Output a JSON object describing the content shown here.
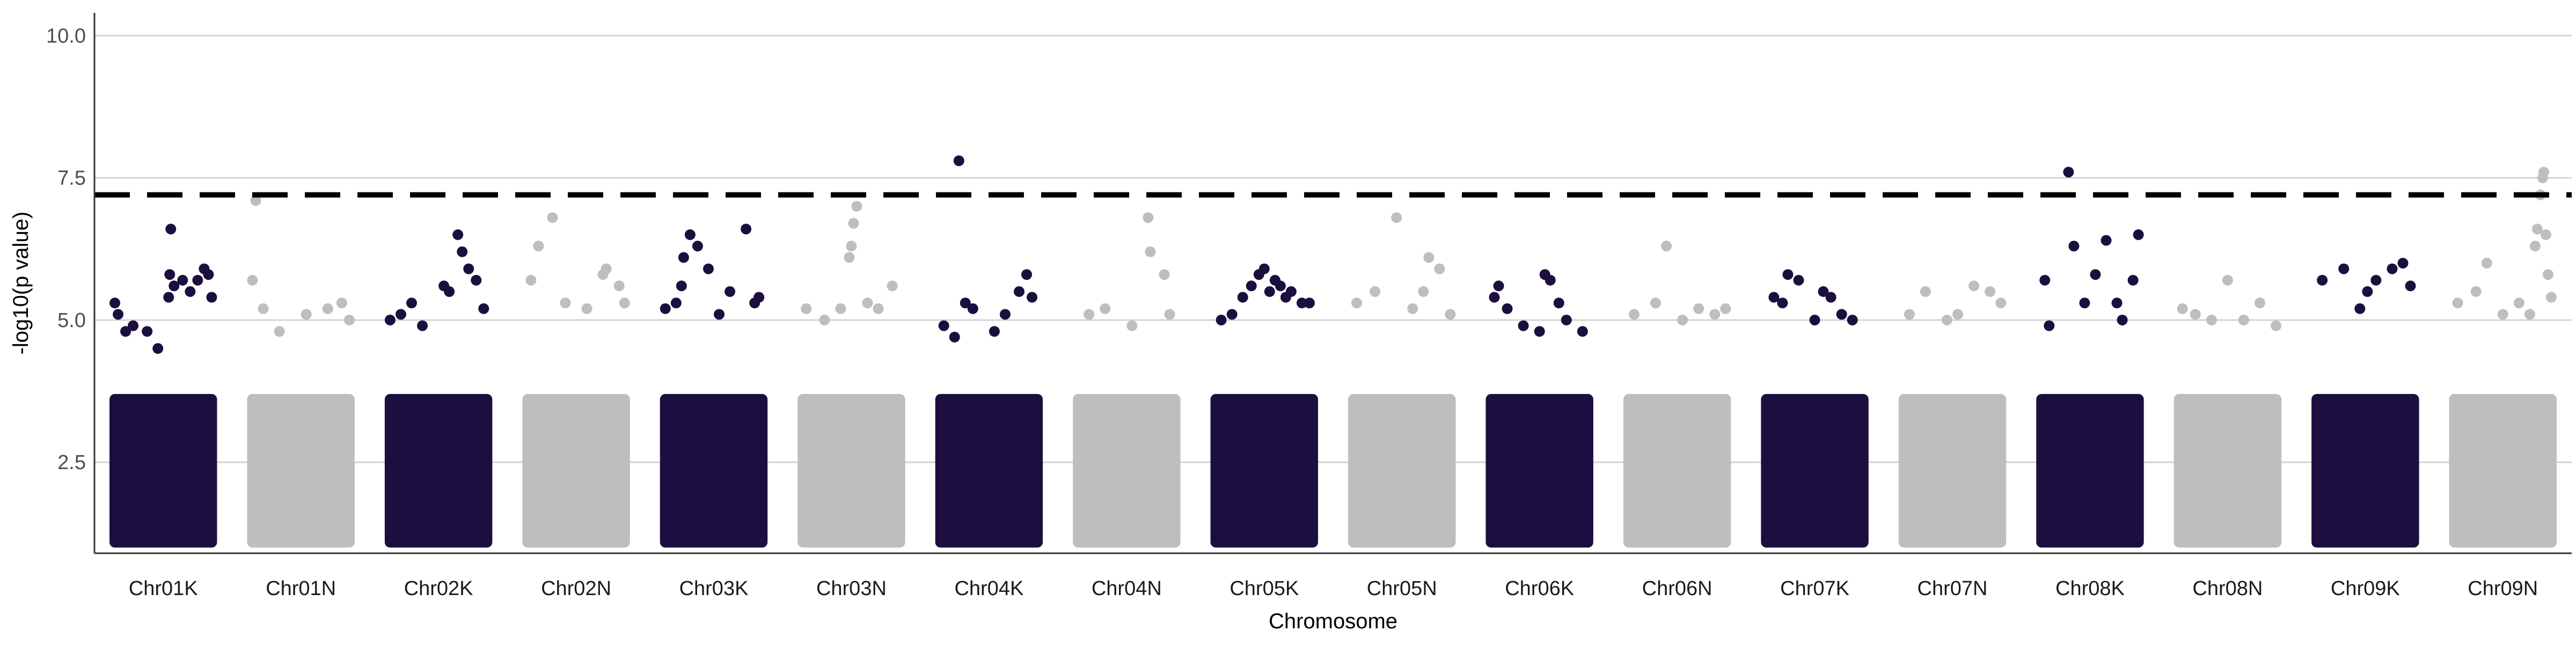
{
  "chart_data": {
    "type": "scatter",
    "title": "",
    "xlabel": "Chromosome",
    "ylabel": "-log10(p value)",
    "ylim": [
      0.9,
      10.4
    ],
    "yticks": [
      2.5,
      5.0,
      7.5,
      10.0
    ],
    "ytick_labels": [
      "2.5",
      "5.0",
      "7.5",
      "10.0"
    ],
    "grid": "horizontal major",
    "legend": "none",
    "significance_threshold": 7.2,
    "colors": {
      "dark": "#1c0f40",
      "light": "#bebebe",
      "threshold": "#000000",
      "grid": "#d3d3d3"
    },
    "categories": [
      "Chr01K",
      "Chr01N",
      "Chr02K",
      "Chr02N",
      "Chr03K",
      "Chr03N",
      "Chr04K",
      "Chr04N",
      "Chr05K",
      "Chr05N",
      "Chr06K",
      "Chr06N",
      "Chr07K",
      "Chr07N",
      "Chr08K",
      "Chr08N",
      "Chr09K",
      "Chr09N"
    ],
    "series": [
      {
        "chromosome": "Chr01K",
        "color": "dark",
        "points": [
          [
            0.05,
            5.3
          ],
          [
            0.08,
            5.1
          ],
          [
            0.15,
            4.8
          ],
          [
            0.22,
            4.9
          ],
          [
            0.35,
            4.8
          ],
          [
            0.45,
            4.5
          ],
          [
            0.55,
            5.4
          ],
          [
            0.56,
            5.8
          ],
          [
            0.57,
            6.6
          ],
          [
            0.6,
            5.6
          ],
          [
            0.68,
            5.7
          ],
          [
            0.75,
            5.5
          ],
          [
            0.82,
            5.7
          ],
          [
            0.88,
            5.9
          ],
          [
            0.92,
            5.8
          ],
          [
            0.95,
            5.4
          ]
        ]
      },
      {
        "chromosome": "Chr01N",
        "color": "light",
        "points": [
          [
            0.05,
            5.7
          ],
          [
            0.08,
            7.1
          ],
          [
            0.15,
            5.2
          ],
          [
            0.3,
            4.8
          ],
          [
            0.55,
            5.1
          ],
          [
            0.75,
            5.2
          ],
          [
            0.88,
            5.3
          ],
          [
            0.95,
            5.0
          ]
        ]
      },
      {
        "chromosome": "Chr02K",
        "color": "dark",
        "points": [
          [
            0.05,
            5.0
          ],
          [
            0.15,
            5.1
          ],
          [
            0.25,
            5.3
          ],
          [
            0.35,
            4.9
          ],
          [
            0.55,
            5.6
          ],
          [
            0.6,
            5.5
          ],
          [
            0.68,
            6.5
          ],
          [
            0.72,
            6.2
          ],
          [
            0.78,
            5.9
          ],
          [
            0.85,
            5.7
          ],
          [
            0.92,
            5.2
          ]
        ]
      },
      {
        "chromosome": "Chr02N",
        "color": "light",
        "points": [
          [
            0.08,
            5.7
          ],
          [
            0.15,
            6.3
          ],
          [
            0.28,
            6.8
          ],
          [
            0.4,
            5.3
          ],
          [
            0.6,
            5.2
          ],
          [
            0.75,
            5.8
          ],
          [
            0.78,
            5.9
          ],
          [
            0.9,
            5.6
          ],
          [
            0.95,
            5.3
          ]
        ]
      },
      {
        "chromosome": "Chr03K",
        "color": "dark",
        "points": [
          [
            0.05,
            5.2
          ],
          [
            0.15,
            5.3
          ],
          [
            0.2,
            5.6
          ],
          [
            0.22,
            6.1
          ],
          [
            0.28,
            6.5
          ],
          [
            0.35,
            6.3
          ],
          [
            0.45,
            5.9
          ],
          [
            0.55,
            5.1
          ],
          [
            0.65,
            5.5
          ],
          [
            0.8,
            6.6
          ],
          [
            0.88,
            5.3
          ],
          [
            0.92,
            5.4
          ]
        ]
      },
      {
        "chromosome": "Chr03N",
        "color": "light",
        "points": [
          [
            0.08,
            5.2
          ],
          [
            0.25,
            5.0
          ],
          [
            0.4,
            5.2
          ],
          [
            0.48,
            6.1
          ],
          [
            0.5,
            6.3
          ],
          [
            0.52,
            6.7
          ],
          [
            0.55,
            7.0
          ],
          [
            0.65,
            5.3
          ],
          [
            0.75,
            5.2
          ],
          [
            0.88,
            5.6
          ]
        ]
      },
      {
        "chromosome": "Chr04K",
        "color": "dark",
        "points": [
          [
            0.08,
            4.9
          ],
          [
            0.18,
            4.7
          ],
          [
            0.22,
            7.8
          ],
          [
            0.28,
            5.3
          ],
          [
            0.35,
            5.2
          ],
          [
            0.55,
            4.8
          ],
          [
            0.65,
            5.1
          ],
          [
            0.78,
            5.5
          ],
          [
            0.85,
            5.8
          ],
          [
            0.9,
            5.4
          ]
        ]
      },
      {
        "chromosome": "Chr04N",
        "color": "light",
        "points": [
          [
            0.15,
            5.1
          ],
          [
            0.3,
            5.2
          ],
          [
            0.55,
            4.9
          ],
          [
            0.7,
            6.8
          ],
          [
            0.72,
            6.2
          ],
          [
            0.85,
            5.8
          ],
          [
            0.9,
            5.1
          ]
        ]
      },
      {
        "chromosome": "Chr05K",
        "color": "dark",
        "points": [
          [
            0.1,
            5.0
          ],
          [
            0.2,
            5.1
          ],
          [
            0.3,
            5.4
          ],
          [
            0.38,
            5.6
          ],
          [
            0.45,
            5.8
          ],
          [
            0.5,
            5.9
          ],
          [
            0.55,
            5.5
          ],
          [
            0.6,
            5.7
          ],
          [
            0.65,
            5.6
          ],
          [
            0.7,
            5.4
          ],
          [
            0.75,
            5.5
          ],
          [
            0.85,
            5.3
          ],
          [
            0.92,
            5.3
          ]
        ]
      },
      {
        "chromosome": "Chr05N",
        "color": "light",
        "points": [
          [
            0.08,
            5.3
          ],
          [
            0.25,
            5.5
          ],
          [
            0.45,
            6.8
          ],
          [
            0.6,
            5.2
          ],
          [
            0.7,
            5.5
          ],
          [
            0.75,
            6.1
          ],
          [
            0.85,
            5.9
          ],
          [
            0.95,
            5.1
          ]
        ]
      },
      {
        "chromosome": "Chr06K",
        "color": "dark",
        "points": [
          [
            0.08,
            5.4
          ],
          [
            0.12,
            5.6
          ],
          [
            0.2,
            5.2
          ],
          [
            0.35,
            4.9
          ],
          [
            0.5,
            4.8
          ],
          [
            0.55,
            5.8
          ],
          [
            0.6,
            5.7
          ],
          [
            0.68,
            5.3
          ],
          [
            0.75,
            5.0
          ],
          [
            0.9,
            4.8
          ]
        ]
      },
      {
        "chromosome": "Chr06N",
        "color": "light",
        "points": [
          [
            0.1,
            5.1
          ],
          [
            0.3,
            5.3
          ],
          [
            0.4,
            6.3
          ],
          [
            0.55,
            5.0
          ],
          [
            0.7,
            5.2
          ],
          [
            0.85,
            5.1
          ],
          [
            0.95,
            5.2
          ]
        ]
      },
      {
        "chromosome": "Chr07K",
        "color": "dark",
        "points": [
          [
            0.12,
            5.4
          ],
          [
            0.2,
            5.3
          ],
          [
            0.25,
            5.8
          ],
          [
            0.35,
            5.7
          ],
          [
            0.5,
            5.0
          ],
          [
            0.58,
            5.5
          ],
          [
            0.65,
            5.4
          ],
          [
            0.75,
            5.1
          ],
          [
            0.85,
            5.0
          ]
        ]
      },
      {
        "chromosome": "Chr07N",
        "color": "light",
        "points": [
          [
            0.1,
            5.1
          ],
          [
            0.25,
            5.5
          ],
          [
            0.45,
            5.0
          ],
          [
            0.55,
            5.1
          ],
          [
            0.7,
            5.6
          ],
          [
            0.85,
            5.5
          ],
          [
            0.95,
            5.3
          ]
        ]
      },
      {
        "chromosome": "Chr08K",
        "color": "dark",
        "points": [
          [
            0.08,
            5.7
          ],
          [
            0.12,
            4.9
          ],
          [
            0.3,
            7.6
          ],
          [
            0.35,
            6.3
          ],
          [
            0.45,
            5.3
          ],
          [
            0.55,
            5.8
          ],
          [
            0.65,
            6.4
          ],
          [
            0.75,
            5.3
          ],
          [
            0.8,
            5.0
          ],
          [
            0.95,
            6.5
          ],
          [
            0.9,
            5.7
          ]
        ]
      },
      {
        "chromosome": "Chr08N",
        "color": "light",
        "points": [
          [
            0.08,
            5.2
          ],
          [
            0.2,
            5.1
          ],
          [
            0.35,
            5.0
          ],
          [
            0.5,
            5.7
          ],
          [
            0.65,
            5.0
          ],
          [
            0.8,
            5.3
          ],
          [
            0.95,
            4.9
          ]
        ]
      },
      {
        "chromosome": "Chr09K",
        "color": "dark",
        "points": [
          [
            0.1,
            5.7
          ],
          [
            0.3,
            5.9
          ],
          [
            0.45,
            5.2
          ],
          [
            0.52,
            5.5
          ],
          [
            0.6,
            5.7
          ],
          [
            0.75,
            5.9
          ],
          [
            0.85,
            6.0
          ],
          [
            0.92,
            5.6
          ]
        ]
      },
      {
        "chromosome": "Chr09N",
        "color": "light",
        "points": [
          [
            0.08,
            5.3
          ],
          [
            0.25,
            5.5
          ],
          [
            0.35,
            6.0
          ],
          [
            0.5,
            5.1
          ],
          [
            0.65,
            5.3
          ],
          [
            0.75,
            5.1
          ],
          [
            0.8,
            6.3
          ],
          [
            0.82,
            6.6
          ],
          [
            0.85,
            7.2
          ],
          [
            0.87,
            7.5
          ],
          [
            0.88,
            7.6
          ],
          [
            0.9,
            6.5
          ],
          [
            0.92,
            5.8
          ],
          [
            0.95,
            5.4
          ]
        ]
      }
    ]
  }
}
